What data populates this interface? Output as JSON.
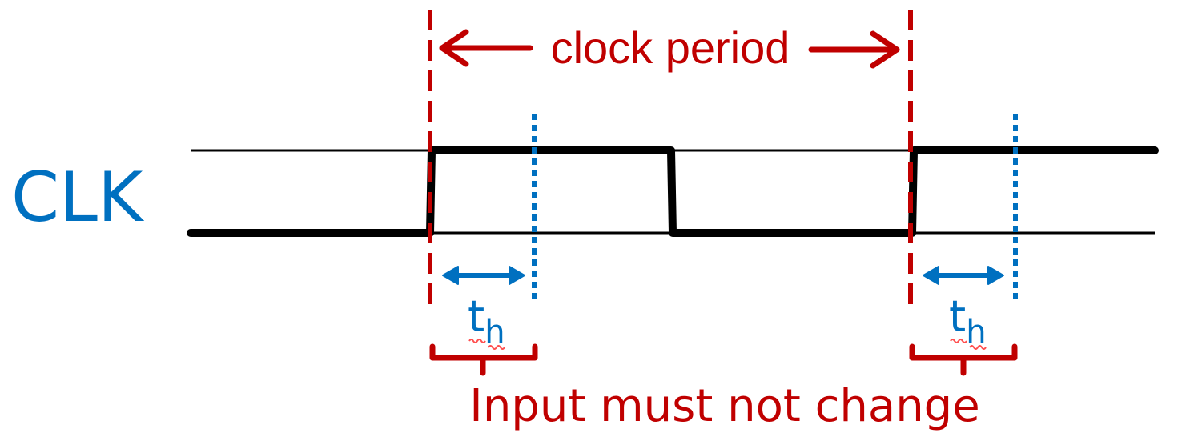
{
  "signal": {
    "name": "CLK",
    "name_color": "#0070C0"
  },
  "period_label": {
    "text": "clock period",
    "color": "#C00000"
  },
  "hold_label": {
    "symbol": "t",
    "subscript": "h",
    "color": "#0070C0"
  },
  "constraint_label": {
    "text": "Input must not change",
    "color": "#C00000"
  },
  "colors": {
    "waveform": "#000000",
    "rail": "#000000",
    "edge_marker": "#C00000",
    "hold_marker": "#0070C0",
    "spell_squiggle": "#FF5050"
  }
}
